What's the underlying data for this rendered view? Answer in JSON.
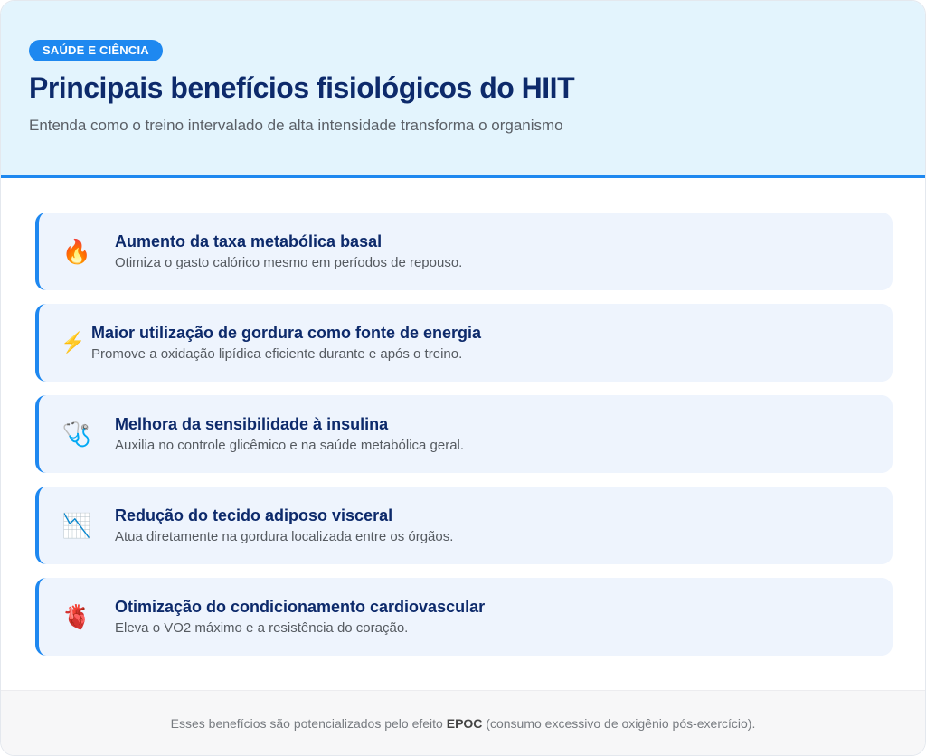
{
  "header": {
    "badge": "SAÚDE E CIÊNCIA",
    "title": "Principais benefícios fisiológicos do HIIT",
    "subtitle": "Entenda como o treino intervalado de alta intensidade transforma o organismo"
  },
  "benefits": [
    {
      "icon": "🔥",
      "icon_name": "fire-icon",
      "title": "Aumento da taxa metabólica basal",
      "description": "Otimiza o gasto calórico mesmo em períodos de repouso."
    },
    {
      "icon": "⚡",
      "icon_name": "lightning-icon",
      "title": "Maior utilização de gordura como fonte de energia",
      "description": "Promove a oxidação lipídica eficiente durante e após o treino."
    },
    {
      "icon": "🩺",
      "icon_name": "stethoscope-icon",
      "title": "Melhora da sensibilidade à insulina",
      "description": "Auxilia no controle glicêmico e na saúde metabólica geral."
    },
    {
      "icon": "📉",
      "icon_name": "chart-decreasing-icon",
      "title": "Redução do tecido adiposo visceral",
      "description": "Atua diretamente na gordura localizada entre os órgãos."
    },
    {
      "icon": "🫀",
      "icon_name": "anatomical-heart-icon",
      "title": "Otimização do condicionamento cardiovascular",
      "description": "Eleva o VO2 máximo e a resistência do coração."
    }
  ],
  "footer": {
    "text_before": "Esses benefícios são potencializados pelo efeito ",
    "highlight": "EPOC",
    "text_after": " (consumo excessivo de oxigênio pós-exercício)."
  },
  "colors": {
    "accent": "#1e88f0",
    "title": "#0d2a6b",
    "header_bg": "#e3f4fd",
    "item_bg": "#eef4fd"
  }
}
